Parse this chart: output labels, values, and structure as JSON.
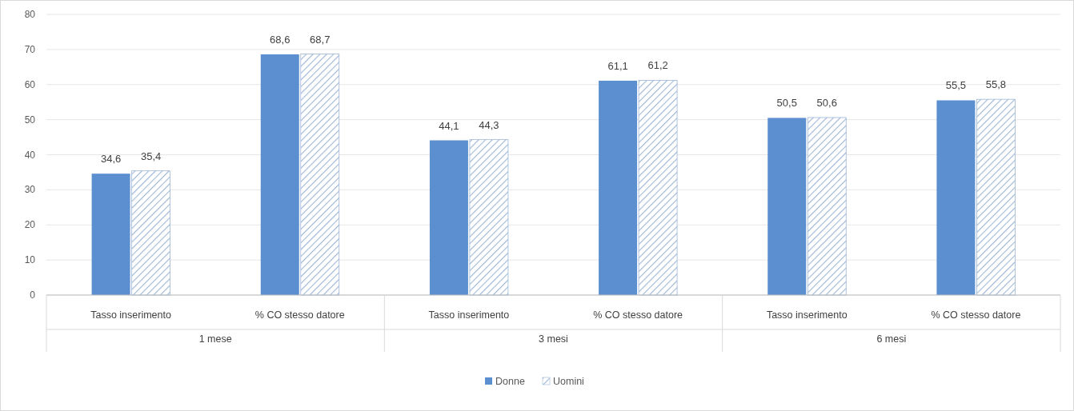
{
  "chart_data": {
    "type": "bar",
    "categories": [
      "Tasso inserimento",
      "% CO stesso datore",
      "Tasso inserimento",
      "% CO stesso datore",
      "Tasso inserimento",
      "% CO stesso datore"
    ],
    "series": [
      {
        "name": "Donne",
        "color": "#5b8fd0",
        "values": [
          34.6,
          68.6,
          44.1,
          61.1,
          50.5,
          55.5
        ],
        "value_labels": [
          "34,6",
          "68,6",
          "44,1",
          "61,1",
          "50,5",
          "55,5"
        ]
      },
      {
        "name": "Uomini",
        "color": "#9db6d6",
        "values": [
          35.4,
          68.7,
          44.3,
          61.2,
          50.6,
          55.8
        ],
        "value_labels": [
          "35,4",
          "68,7",
          "44,3",
          "61,2",
          "50,6",
          "55,8"
        ]
      }
    ],
    "annotations": [
      "1 mese",
      "3 mesi",
      "6 mesi"
    ],
    "ylim": [
      0,
      80
    ],
    "yticks": [
      0,
      10,
      20,
      30,
      40,
      50,
      60,
      70,
      80
    ],
    "grid": "y",
    "legend": "bottom"
  }
}
